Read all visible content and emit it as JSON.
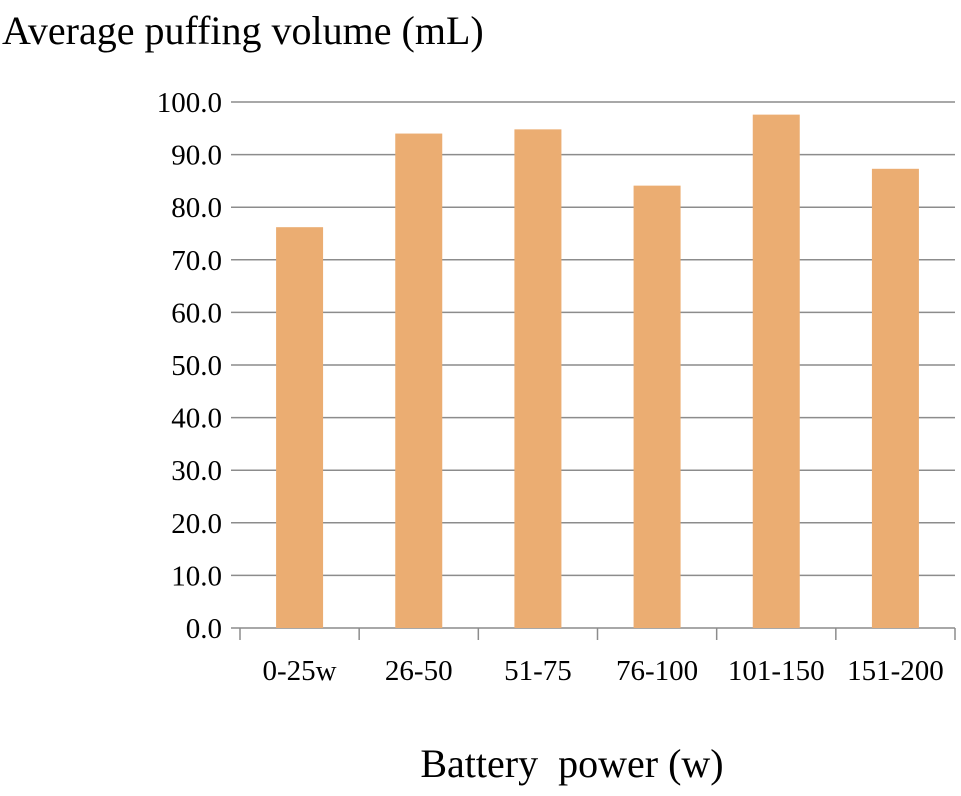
{
  "chart_data": {
    "type": "bar",
    "title": "",
    "ylabel": "Average puffing volume (mL)",
    "xlabel": "Battery  power (w)",
    "categories": [
      "0-25w",
      "26-50",
      "51-75",
      "76-100",
      "101-150",
      "151-200"
    ],
    "values": [
      76.2,
      94.0,
      94.8,
      84.1,
      97.6,
      87.3
    ],
    "ylim": [
      0,
      100
    ],
    "yticks": [
      0,
      10,
      20,
      30,
      40,
      50,
      60,
      70,
      80,
      90,
      100
    ],
    "ytick_labels": [
      "0.0",
      "10.0",
      "20.0",
      "30.0",
      "40.0",
      "50.0",
      "60.0",
      "70.0",
      "80.0",
      "90.0",
      "100.0"
    ],
    "grid": true,
    "legend": "none",
    "colors": {
      "bar": "#EBAD72",
      "grid": "#8c8c8c",
      "text": "#000000"
    }
  }
}
